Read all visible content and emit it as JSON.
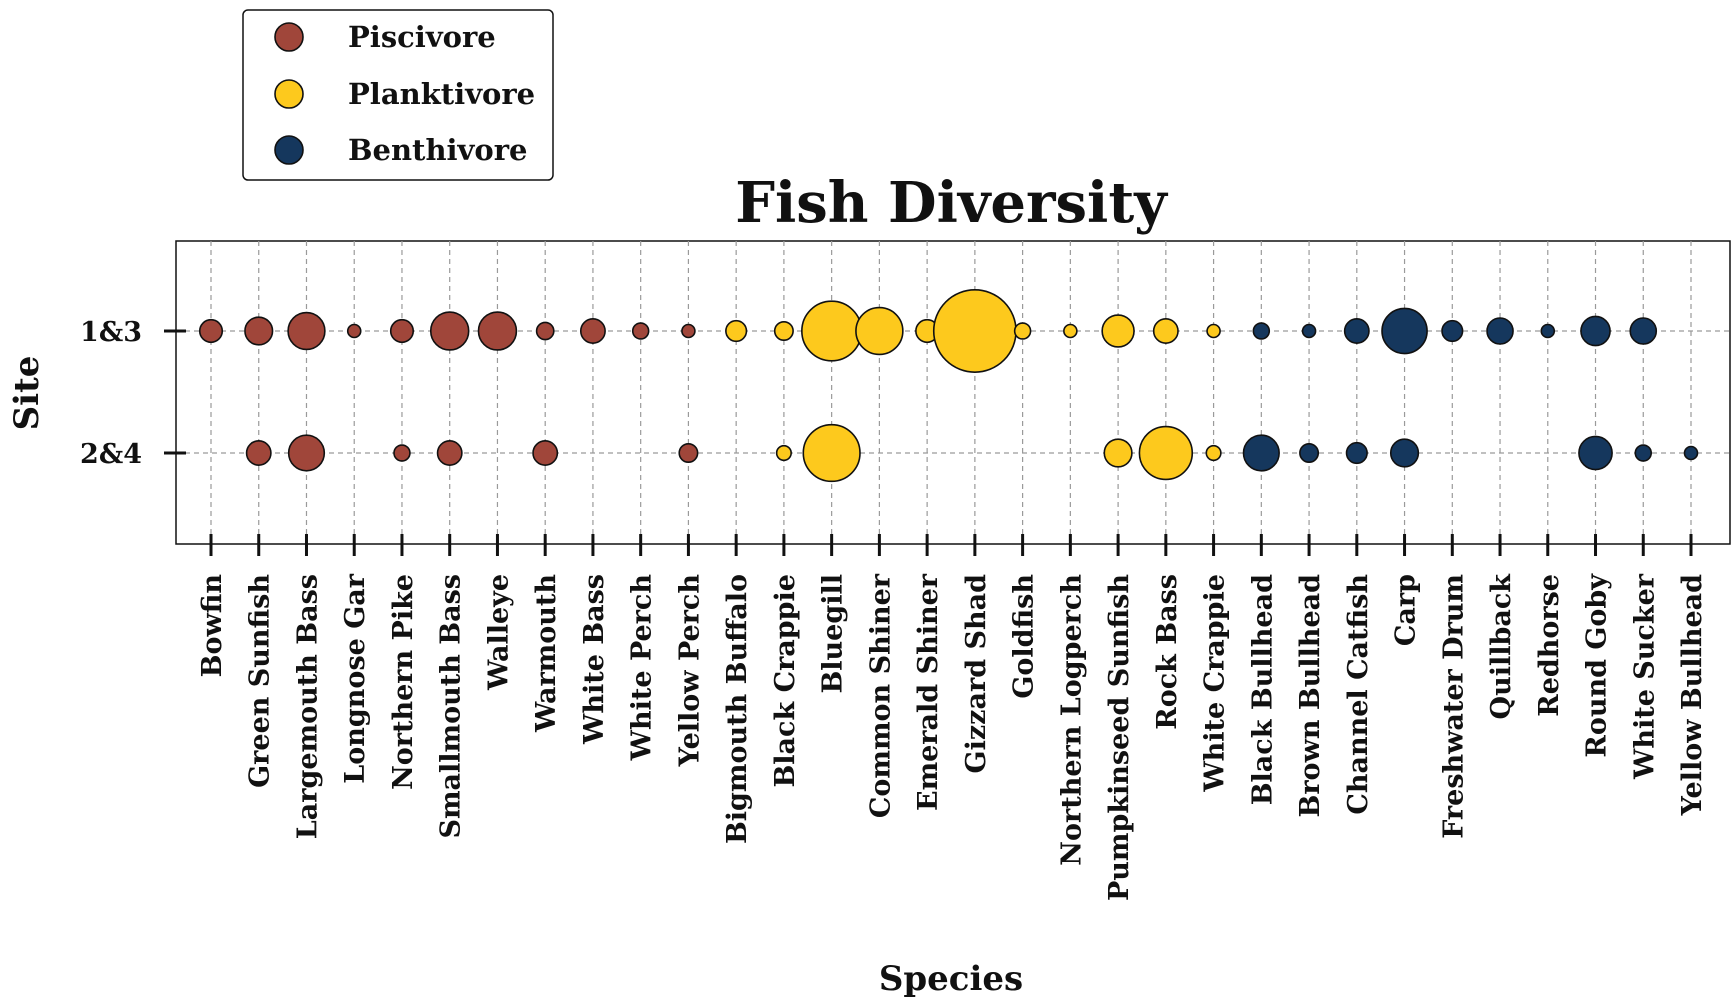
{
  "chart_data": {
    "type": "scatter",
    "title": "Fish Diversity",
    "xlabel": "Species",
    "ylabel": "Site",
    "grid": true,
    "legend_position": "top-left",
    "categories": [
      "Bowfin",
      "Green Sunfish",
      "Largemouth Bass",
      "Longnose Gar",
      "Northern Pike",
      "Smallmouth Bass",
      "Walleye",
      "Warmouth",
      "White Bass",
      "White Perch",
      "Yellow Perch",
      "Bigmouth Buffalo",
      "Black Crappie",
      "Bluegill",
      "Common Shiner",
      "Emerald Shiner",
      "Gizzard Shad",
      "Goldfish",
      "Northern Logperch",
      "Pumpkinseed Sunfish",
      "Rock Bass",
      "White Crappie",
      "Black Bullhead",
      "Brown Bullhead",
      "Channel Catfish",
      "Carp",
      "Freshwater Drum",
      "Quillback",
      "Redhorse",
      "Round Goby",
      "White Sucker",
      "Yellow Bullhead"
    ],
    "y_categories": [
      "1&3",
      "2&4"
    ],
    "series": [
      {
        "name": "Piscivore",
        "color": "#a0463a"
      },
      {
        "name": "Planktivore",
        "color": "#fdc91d"
      },
      {
        "name": "Benthivore",
        "color": "#15375d"
      }
    ],
    "points": [
      {
        "species": "Bowfin",
        "site": "1&3",
        "group": "Piscivore",
        "size": 6
      },
      {
        "species": "Green Sunfish",
        "site": "1&3",
        "group": "Piscivore",
        "size": 9
      },
      {
        "species": "Largemouth Bass",
        "site": "1&3",
        "group": "Piscivore",
        "size": 16
      },
      {
        "species": "Longnose Gar",
        "site": "1&3",
        "group": "Piscivore",
        "size": 2
      },
      {
        "species": "Northern Pike",
        "site": "1&3",
        "group": "Piscivore",
        "size": 6
      },
      {
        "species": "Smallmouth Bass",
        "site": "1&3",
        "group": "Piscivore",
        "size": 17
      },
      {
        "species": "Walleye",
        "site": "1&3",
        "group": "Piscivore",
        "size": 17
      },
      {
        "species": "Warmouth",
        "site": "1&3",
        "group": "Piscivore",
        "size": 3.5
      },
      {
        "species": "White Bass",
        "site": "1&3",
        "group": "Piscivore",
        "size": 7
      },
      {
        "species": "White Perch",
        "site": "1&3",
        "group": "Piscivore",
        "size": 3
      },
      {
        "species": "Yellow Perch",
        "site": "1&3",
        "group": "Piscivore",
        "size": 2
      },
      {
        "species": "Bigmouth Buffalo",
        "site": "1&3",
        "group": "Planktivore",
        "size": 5
      },
      {
        "species": "Black Crappie",
        "site": "1&3",
        "group": "Planktivore",
        "size": 4
      },
      {
        "species": "Bluegill",
        "site": "1&3",
        "group": "Planktivore",
        "size": 42
      },
      {
        "species": "Common Shiner",
        "site": "1&3",
        "group": "Planktivore",
        "size": 26
      },
      {
        "species": "Emerald Shiner",
        "site": "1&3",
        "group": "Planktivore",
        "size": 6
      },
      {
        "species": "Gizzard Shad",
        "site": "1&3",
        "group": "Planktivore",
        "size": 80
      },
      {
        "species": "Goldfish",
        "site": "1&3",
        "group": "Planktivore",
        "size": 3
      },
      {
        "species": "Northern Logperch",
        "site": "1&3",
        "group": "Planktivore",
        "size": 2
      },
      {
        "species": "Pumpkinseed Sunfish",
        "site": "1&3",
        "group": "Planktivore",
        "size": 12
      },
      {
        "species": "Rock Bass",
        "site": "1&3",
        "group": "Planktivore",
        "size": 7
      },
      {
        "species": "White Crappie",
        "site": "1&3",
        "group": "Planktivore",
        "size": 2
      },
      {
        "species": "Black Bullhead",
        "site": "1&3",
        "group": "Benthivore",
        "size": 3
      },
      {
        "species": "Brown Bullhead",
        "site": "1&3",
        "group": "Benthivore",
        "size": 2
      },
      {
        "species": "Channel Catfish",
        "site": "1&3",
        "group": "Benthivore",
        "size": 7
      },
      {
        "species": "Carp",
        "site": "1&3",
        "group": "Benthivore",
        "size": 24
      },
      {
        "species": "Freshwater Drum",
        "site": "1&3",
        "group": "Benthivore",
        "size": 5
      },
      {
        "species": "Quillback",
        "site": "1&3",
        "group": "Benthivore",
        "size": 8
      },
      {
        "species": "Redhorse",
        "site": "1&3",
        "group": "Benthivore",
        "size": 2
      },
      {
        "species": "Round Goby",
        "site": "1&3",
        "group": "Benthivore",
        "size": 10
      },
      {
        "species": "White Sucker",
        "site": "1&3",
        "group": "Benthivore",
        "size": 8
      },
      {
        "species": "Green Sunfish",
        "site": "2&4",
        "group": "Piscivore",
        "size": 7
      },
      {
        "species": "Largemouth Bass",
        "site": "2&4",
        "group": "Piscivore",
        "size": 15
      },
      {
        "species": "Northern Pike",
        "site": "2&4",
        "group": "Piscivore",
        "size": 3
      },
      {
        "species": "Smallmouth Bass",
        "site": "2&4",
        "group": "Piscivore",
        "size": 7
      },
      {
        "species": "Warmouth",
        "site": "2&4",
        "group": "Piscivore",
        "size": 7
      },
      {
        "species": "Yellow Perch",
        "site": "2&4",
        "group": "Piscivore",
        "size": 4
      },
      {
        "species": "Black Crappie",
        "site": "2&4",
        "group": "Planktivore",
        "size": 2.5
      },
      {
        "species": "Bluegill",
        "site": "2&4",
        "group": "Planktivore",
        "size": 38
      },
      {
        "species": "Pumpkinseed Sunfish",
        "site": "2&4",
        "group": "Planktivore",
        "size": 9
      },
      {
        "species": "Rock Bass",
        "site": "2&4",
        "group": "Planktivore",
        "size": 33
      },
      {
        "species": "White Crappie",
        "site": "2&4",
        "group": "Planktivore",
        "size": 2.5
      },
      {
        "species": "Black Bullhead",
        "site": "2&4",
        "group": "Benthivore",
        "size": 15
      },
      {
        "species": "Brown Bullhead",
        "site": "2&4",
        "group": "Benthivore",
        "size": 4
      },
      {
        "species": "Channel Catfish",
        "site": "2&4",
        "group": "Benthivore",
        "size": 5
      },
      {
        "species": "Carp",
        "site": "2&4",
        "group": "Benthivore",
        "size": 9
      },
      {
        "species": "Round Goby",
        "site": "2&4",
        "group": "Benthivore",
        "size": 13
      },
      {
        "species": "White Sucker",
        "site": "2&4",
        "group": "Benthivore",
        "size": 3
      },
      {
        "species": "Yellow Bullhead",
        "site": "2&4",
        "group": "Benthivore",
        "size": 2
      }
    ]
  }
}
